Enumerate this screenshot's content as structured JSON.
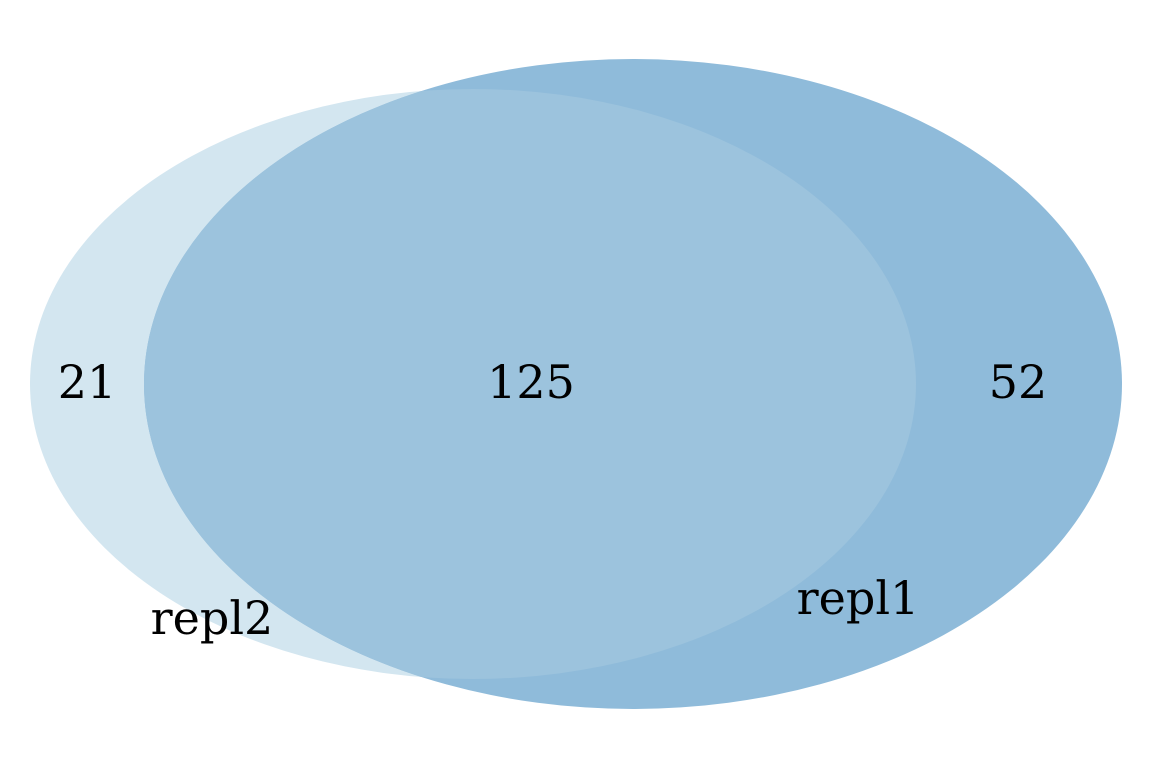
{
  "venn": {
    "sets": [
      {
        "name": "repl2",
        "color": "#d3e6f0"
      },
      {
        "name": "repl1",
        "color": "#8fbbda"
      }
    ],
    "intersection_color": "#9cc3dd",
    "counts": {
      "repl2_only": "21",
      "both": "125",
      "repl1_only": "52"
    }
  }
}
